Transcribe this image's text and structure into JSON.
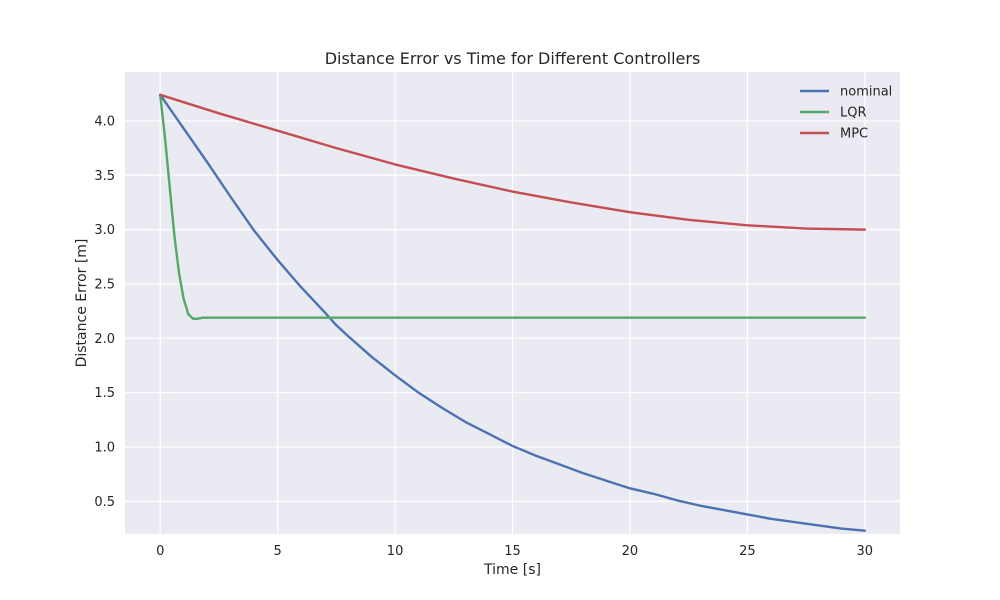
{
  "chart_data": {
    "type": "line",
    "title": "Distance Error vs Time for Different Controllers",
    "xlabel": "Time [s]",
    "ylabel": "Distance Error [m]",
    "xlim": [
      -1.5,
      31.5
    ],
    "ylim": [
      0.2,
      4.45
    ],
    "x_ticks": [
      0,
      5,
      10,
      15,
      20,
      25,
      30
    ],
    "y_ticks": [
      0.5,
      1.0,
      1.5,
      2.0,
      2.5,
      3.0,
      3.5,
      4.0
    ],
    "grid": true,
    "legend_position": "top-right",
    "series": [
      {
        "name": "nominal",
        "color": "#4c72b0",
        "x": [
          0,
          1,
          2,
          3,
          4,
          5,
          6,
          7,
          7.5,
          8,
          9,
          10,
          11,
          12,
          13,
          14,
          15,
          16,
          17,
          18,
          19,
          20,
          21,
          22,
          23,
          24,
          25,
          26,
          27,
          28,
          29,
          30
        ],
        "y": [
          4.24,
          3.93,
          3.62,
          3.3,
          2.99,
          2.72,
          2.47,
          2.24,
          2.12,
          2.02,
          1.83,
          1.66,
          1.5,
          1.36,
          1.23,
          1.12,
          1.01,
          0.92,
          0.84,
          0.76,
          0.69,
          0.62,
          0.57,
          0.51,
          0.46,
          0.42,
          0.38,
          0.34,
          0.31,
          0.28,
          0.25,
          0.23
        ]
      },
      {
        "name": "LQR",
        "color": "#55a868",
        "x": [
          0,
          0.2,
          0.4,
          0.6,
          0.8,
          1.0,
          1.2,
          1.4,
          1.6,
          1.8,
          2.0,
          5,
          10,
          15,
          20,
          25,
          30
        ],
        "y": [
          4.24,
          3.85,
          3.4,
          2.95,
          2.6,
          2.36,
          2.22,
          2.18,
          2.18,
          2.19,
          2.19,
          2.19,
          2.19,
          2.19,
          2.19,
          2.19,
          2.19
        ]
      },
      {
        "name": "MPC",
        "color": "#c44e52",
        "x": [
          0,
          2.5,
          5,
          7.5,
          10,
          12.5,
          15,
          17.5,
          20,
          22.5,
          25,
          27.5,
          30
        ],
        "y": [
          4.24,
          4.07,
          3.91,
          3.75,
          3.6,
          3.47,
          3.35,
          3.25,
          3.16,
          3.09,
          3.04,
          3.01,
          3.0
        ]
      }
    ]
  }
}
